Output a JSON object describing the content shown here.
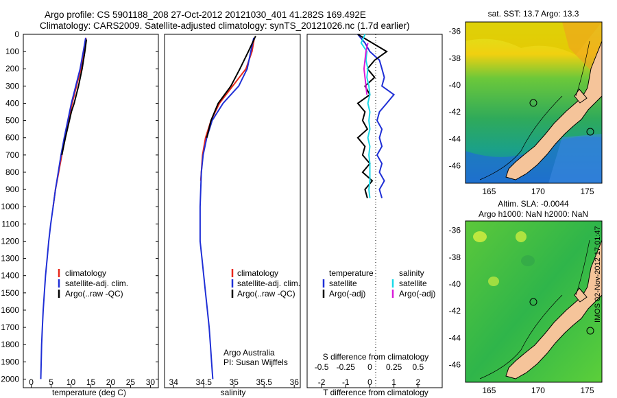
{
  "header": {
    "line1": "Argo profile: CS 5901188_208 27-Oct-2012 20121030_401 41.282S 169.492E",
    "line2": "Climatology: CARS2009. Satellite-adjusted climatology: synTS_20121026.nc (1.7d earlier)"
  },
  "depth_ticks": [
    "0",
    "100",
    "200",
    "300",
    "400",
    "500",
    "600",
    "700",
    "800",
    "900",
    "1000",
    "1100",
    "1200",
    "1300",
    "1400",
    "1500",
    "1600",
    "1700",
    "1800",
    "1900",
    "2000"
  ],
  "colors": {
    "climatology": "#e8271a",
    "satellite": "#1f2fd6",
    "argo": "#000000",
    "sal_sat": "#19d9e8",
    "sal_argo": "#d91ad9",
    "land": "#f5c49a"
  },
  "chart_data": [
    {
      "type": "line",
      "xlabel": "temperature (deg C)",
      "xticks": [
        "0",
        "5",
        "10",
        "15",
        "20",
        "25",
        "30"
      ],
      "xlim": [
        -2,
        32
      ],
      "ylim": [
        2050,
        0
      ],
      "legend": [
        "climatology",
        "satellite-adj. clim.",
        "Argo(..raw -QC)"
      ],
      "series": [
        {
          "name": "climatology",
          "depth": [
            20,
            100,
            200,
            300,
            400,
            500,
            600,
            700,
            800,
            900,
            1000
          ],
          "values": [
            13.8,
            13.3,
            12.5,
            11.4,
            10.3,
            9.4,
            8.5,
            7.7,
            6.9,
            6.1,
            5.5
          ]
        },
        {
          "name": "satellite-adj. clim.",
          "depth": [
            20,
            100,
            200,
            300,
            400,
            500,
            600,
            700,
            800,
            900,
            1000,
            1100,
            1200,
            1300,
            1400,
            1500,
            1600,
            1700,
            1800,
            1900,
            2000
          ],
          "values": [
            13.7,
            13.1,
            12.3,
            11.2,
            10.1,
            9.2,
            8.3,
            7.5,
            6.8,
            6.1,
            5.5,
            4.9,
            4.4,
            4.0,
            3.6,
            3.3,
            3.0,
            2.8,
            2.6,
            2.5,
            2.4
          ]
        },
        {
          "name": "Argo(..raw -QC)",
          "depth": [
            30,
            100,
            200,
            300,
            400,
            450,
            500,
            600,
            700
          ],
          "values": [
            13.9,
            13.5,
            12.8,
            11.9,
            10.8,
            10.1,
            9.6,
            8.6,
            7.7
          ]
        }
      ]
    },
    {
      "type": "line",
      "xlabel": "salinity",
      "xticks": [
        "34",
        "34.5",
        "35",
        "35.5",
        "36"
      ],
      "xlim": [
        33.85,
        36.1
      ],
      "ylim": [
        2050,
        0
      ],
      "legend": [
        "climatology",
        "satellite-adj. clim.",
        "Argo(..raw -QC)"
      ],
      "annotations": [
        "Argo Australia",
        "PI: Susan Wijffels"
      ],
      "series": [
        {
          "name": "climatology",
          "depth": [
            20,
            100,
            200,
            300,
            400,
            500,
            600,
            700,
            800,
            850
          ],
          "values": [
            35.34,
            35.3,
            35.2,
            34.98,
            34.76,
            34.62,
            34.53,
            34.48,
            34.46,
            34.45
          ]
        },
        {
          "name": "satellite-adj. clim.",
          "depth": [
            20,
            100,
            200,
            300,
            400,
            500,
            600,
            700,
            800,
            900,
            1000,
            1100,
            1200,
            1300,
            1400,
            1500,
            1600,
            1700,
            1800,
            1900,
            2000
          ],
          "values": [
            35.33,
            35.28,
            35.22,
            35.08,
            34.82,
            34.64,
            34.55,
            34.49,
            34.46,
            34.45,
            34.44,
            34.44,
            34.44,
            34.47,
            34.5,
            34.53,
            34.56,
            34.59,
            34.61,
            34.63,
            34.65
          ]
        },
        {
          "name": "Argo(..raw -QC)",
          "depth": [
            10,
            100,
            200,
            300,
            400,
            500,
            600
          ],
          "values": [
            35.36,
            35.24,
            35.1,
            34.95,
            34.74,
            34.62,
            34.55
          ]
        }
      ]
    },
    {
      "type": "line",
      "xlabel": "T difference from climatology",
      "xlabel2": "S difference from climatology",
      "xticks": [
        "-2",
        "-1",
        "0",
        "1",
        "2"
      ],
      "xticks2": [
        "-0.5",
        "-0.25",
        "0",
        "0.25",
        "0.5"
      ],
      "xlim": [
        -2.6,
        3.0
      ],
      "ylim": [
        2050,
        0
      ],
      "legend": {
        "temperature_header": "temperature",
        "salinity_header": "salinity",
        "temp_items": [
          "satellite",
          "Argo(-adj)"
        ],
        "sal_items": [
          "satellite",
          "Argo(-adj)"
        ]
      },
      "series": [
        {
          "name": "T satellite",
          "depth": [
            0,
            50,
            100,
            150,
            200,
            250,
            300,
            350,
            400,
            450,
            500,
            550,
            600,
            650,
            700,
            750,
            800,
            850,
            900,
            950
          ],
          "values": [
            -0.5,
            -0.2,
            0.0,
            0.4,
            0.5,
            0.6,
            0.5,
            1.0,
            0.7,
            0.4,
            0.3,
            0.5,
            0.4,
            0.5,
            0.3,
            0.5,
            0.4,
            0.6,
            0.4,
            0.5
          ]
        },
        {
          "name": "T Argo(-adj)",
          "depth": [
            0,
            50,
            100,
            150,
            200,
            250,
            300,
            350,
            400,
            450,
            500,
            550,
            600,
            650,
            700,
            750,
            800,
            850,
            900,
            950
          ],
          "values": [
            -0.5,
            0.1,
            0.7,
            0.2,
            -0.1,
            0.2,
            -0.2,
            0.0,
            -0.5,
            -0.2,
            -0.3,
            -0.1,
            -0.5,
            -0.2,
            -0.3,
            0.0,
            -0.3,
            0.1,
            -0.2,
            -0.1
          ]
        },
        {
          "name": "S satellite",
          "depth": [
            0,
            50,
            100,
            150,
            200,
            250,
            300,
            350,
            400,
            450,
            500,
            550,
            600,
            650,
            700,
            750,
            800,
            850,
            900,
            950
          ],
          "values": [
            -0.05,
            -0.09,
            -0.03,
            -0.04,
            -0.02,
            -0.03,
            -0.01,
            0.0,
            -0.02,
            0.0,
            -0.01,
            0.0,
            -0.02,
            0.0,
            -0.01,
            0.0,
            0.0,
            0.0,
            -0.01,
            0.0
          ]
        },
        {
          "name": "S Argo(-adj)",
          "depth": [
            50,
            100,
            150,
            200,
            250,
            300,
            350
          ],
          "values": [
            -0.02,
            -0.04,
            -0.05,
            -0.06,
            -0.05,
            -0.04,
            -0.03
          ]
        }
      ]
    }
  ],
  "map_top": {
    "title": "sat. SST: 13.7 Argo: 13.3",
    "yticks": [
      "-36",
      "-38",
      "-40",
      "-42",
      "-44",
      "-46"
    ],
    "xticks": [
      "165",
      "170",
      "175"
    ]
  },
  "map_bottom": {
    "title1": "Altim. SLA: -0.0044",
    "title2": "Argo h1000: NaN h2000: NaN",
    "yticks": [
      "-36",
      "-38",
      "-40",
      "-42",
      "-44",
      "-46"
    ],
    "xticks": [
      "165",
      "170",
      "175"
    ]
  },
  "footer_stamp": "IMOS 02-Nov-2012 17:01:47"
}
